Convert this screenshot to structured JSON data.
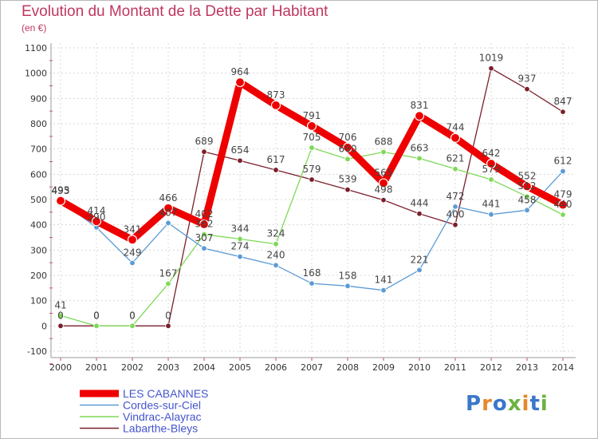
{
  "title": "Evolution du Montant de la Dette par Habitant",
  "unit": "(en €)",
  "logo": {
    "text": "Proxiti",
    "colors": [
      "#3a78c9",
      "#e8872a",
      "#3a78c9",
      "#6ab43e",
      "#e8872a",
      "#3a78c9",
      "#6ab43e"
    ]
  },
  "chart_data": {
    "type": "line",
    "x": [
      "2000",
      "2001",
      "2002",
      "2003",
      "2004",
      "2005",
      "2006",
      "2007",
      "2008",
      "2009",
      "2010",
      "2011",
      "2012",
      "2013",
      "2014"
    ],
    "ylim": [
      -100,
      1100
    ],
    "yticks": [
      -100,
      0,
      100,
      200,
      300,
      400,
      500,
      600,
      700,
      800,
      900,
      1000,
      1100
    ],
    "grid": true,
    "legend_position": "bottom-left",
    "series": [
      {
        "name": "LES CABANNES",
        "color": "#ee0000",
        "values": [
          495,
          414,
          341,
          466,
          402,
          964,
          873,
          791,
          706,
          565,
          831,
          744,
          642,
          552,
          479
        ]
      },
      {
        "name": "Cordes-sur-Ciel",
        "color": "#5b9bd5",
        "values": [
          493,
          390,
          249,
          407,
          307,
          274,
          240,
          168,
          158,
          141,
          221,
          472,
          441,
          458,
          612
        ]
      },
      {
        "name": "Vindrac-Alayrac",
        "color": "#7ed957",
        "values": [
          41,
          0,
          0,
          167,
          362,
          344,
          324,
          705,
          660,
          688,
          663,
          621,
          579,
          512,
          440
        ]
      },
      {
        "name": "Labarthe-Bleys",
        "color": "#7a1f2b",
        "values": [
          0,
          0,
          0,
          0,
          689,
          654,
          617,
          579,
          539,
          498,
          444,
          400,
          1019,
          937,
          847
        ]
      }
    ]
  }
}
